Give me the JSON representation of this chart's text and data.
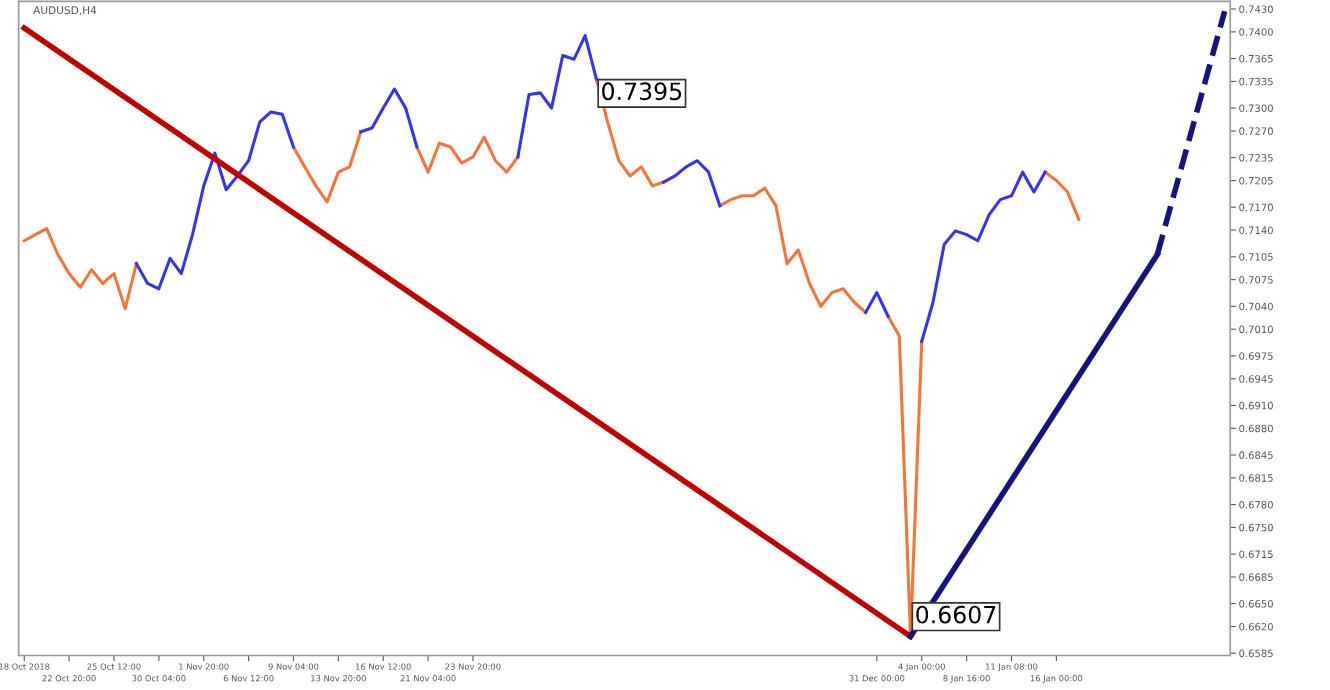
{
  "chart_data": {
    "type": "line",
    "title": "AUDUSD,H4",
    "categories": [
      "18 Oct 2018",
      null,
      null,
      null,
      "22 Oct 20:00",
      null,
      null,
      null,
      "25 Oct 12:00",
      null,
      null,
      null,
      "30 Oct 04:00",
      null,
      null,
      null,
      "1 Nov 20:00",
      null,
      null,
      null,
      "6 Nov 12:00",
      null,
      null,
      null,
      "9 Nov 04:00",
      null,
      null,
      null,
      "13 Nov 20:00",
      null,
      null,
      null,
      "16 Nov 12:00",
      null,
      null,
      null,
      "21 Nov 04:00",
      null,
      null,
      null,
      "23 Nov 20:00",
      null,
      null,
      null,
      null,
      null,
      null,
      null,
      null,
      null,
      null,
      null,
      null,
      null,
      null,
      null,
      null,
      null,
      null,
      null,
      null,
      null,
      null,
      null,
      null,
      null,
      null,
      null,
      null,
      null,
      null,
      null,
      null,
      null,
      null,
      null,
      "31 Dec 00:00",
      null,
      null,
      null,
      "4 Jan 00:00",
      null,
      null,
      null,
      "8 Jan 16:00",
      null,
      null,
      null,
      "11 Jan 08:00",
      null,
      null,
      null,
      "16 Jan 00:00",
      null,
      null,
      null,
      null,
      null,
      null,
      null,
      null,
      null,
      null,
      null,
      null,
      null,
      null,
      null
    ],
    "series": [
      {
        "color": "#f5743b",
        "values": [
          0.7126,
          0.7134,
          0.7142,
          0.7108,
          0.7083,
          0.7065,
          0.7088,
          0.707,
          0.7083,
          0.7037,
          0.7096,
          null,
          null,
          null,
          null,
          null,
          null,
          null,
          null,
          null,
          null,
          null,
          null,
          null,
          0.7249,
          0.7223,
          0.7198,
          0.7177,
          0.7216,
          0.7223,
          0.7269,
          null,
          null,
          null,
          null,
          0.7249,
          0.7216,
          0.7254,
          0.7249,
          0.7228,
          0.7236,
          0.7262,
          0.7231,
          0.7216,
          0.7236,
          null,
          null,
          null,
          null,
          null,
          null,
          0.7338,
          0.7282,
          0.7231,
          0.7211,
          0.7223,
          0.7198,
          0.7203,
          null,
          null,
          null,
          null,
          0.7172,
          0.718,
          0.7185,
          0.7185,
          0.7195,
          0.7172,
          0.7096,
          0.7114,
          0.707,
          0.704,
          0.7058,
          0.7063,
          0.7045,
          0.7032,
          null,
          0.7027,
          0.7001,
          0.6607,
          0.6994,
          null,
          null,
          null,
          null,
          null,
          null,
          null,
          null,
          null,
          null,
          0.7216,
          0.7205,
          0.719,
          0.7154,
          null,
          null,
          null,
          null,
          null,
          null,
          null,
          null,
          null,
          null,
          null,
          null,
          null
        ]
      },
      {
        "color": "#3535e8",
        "values": [
          null,
          null,
          null,
          null,
          null,
          null,
          null,
          null,
          null,
          null,
          0.7096,
          0.707,
          0.7063,
          0.7103,
          0.7083,
          0.7134,
          0.7198,
          0.7241,
          0.7193,
          0.7211,
          0.7231,
          0.7282,
          0.7295,
          0.7292,
          0.7249,
          null,
          null,
          null,
          null,
          null,
          0.7269,
          0.7274,
          0.73,
          0.7325,
          0.73,
          0.7249,
          null,
          null,
          null,
          null,
          null,
          null,
          null,
          null,
          0.7236,
          0.7318,
          0.732,
          0.73,
          0.7369,
          0.7364,
          0.7395,
          0.7338,
          null,
          null,
          null,
          null,
          null,
          0.7203,
          0.7211,
          0.7223,
          0.7231,
          0.7216,
          0.7172,
          null,
          null,
          null,
          null,
          null,
          null,
          null,
          null,
          null,
          null,
          null,
          null,
          0.7032,
          0.7058,
          0.7027,
          null,
          null,
          0.6994,
          0.7045,
          0.7121,
          0.7139,
          0.7134,
          0.7126,
          0.716,
          0.718,
          0.7185,
          0.7216,
          0.719,
          0.7216,
          null,
          null,
          null,
          null,
          null,
          null,
          null,
          null,
          null,
          null,
          null,
          null,
          null,
          null,
          null,
          null
        ]
      },
      {
        "color": "#c00000",
        "line_style": "solid",
        "values": [
          0.7405,
          null,
          null,
          null,
          null,
          null,
          null,
          null,
          null,
          null,
          null,
          null,
          null,
          null,
          null,
          null,
          null,
          null,
          null,
          null,
          null,
          null,
          null,
          null,
          null,
          null,
          null,
          null,
          null,
          null,
          null,
          null,
          null,
          null,
          null,
          null,
          null,
          null,
          null,
          null,
          null,
          null,
          null,
          null,
          null,
          null,
          null,
          null,
          null,
          null,
          null,
          null,
          null,
          null,
          null,
          null,
          null,
          null,
          null,
          null,
          null,
          null,
          null,
          null,
          null,
          null,
          null,
          null,
          null,
          null,
          null,
          null,
          null,
          null,
          null,
          null,
          null,
          null,
          null,
          0.6607,
          null,
          null,
          null,
          null,
          null,
          null,
          null,
          null,
          null,
          null,
          null,
          null,
          null,
          null,
          null,
          null,
          null,
          null,
          null,
          null,
          null,
          null,
          null,
          null,
          null,
          null,
          null,
          null
        ]
      },
      {
        "color": "#14147a",
        "line_style": "solid",
        "values": [
          null,
          null,
          null,
          null,
          null,
          null,
          null,
          null,
          null,
          null,
          null,
          null,
          null,
          null,
          null,
          null,
          null,
          null,
          null,
          null,
          null,
          null,
          null,
          null,
          null,
          null,
          null,
          null,
          null,
          null,
          null,
          null,
          null,
          null,
          null,
          null,
          null,
          null,
          null,
          null,
          null,
          null,
          null,
          null,
          null,
          null,
          null,
          null,
          null,
          null,
          null,
          null,
          null,
          null,
          null,
          null,
          null,
          null,
          null,
          null,
          null,
          null,
          null,
          null,
          null,
          null,
          null,
          null,
          null,
          null,
          null,
          null,
          null,
          null,
          null,
          null,
          null,
          null,
          null,
          0.6607,
          null,
          null,
          null,
          null,
          null,
          null,
          null,
          null,
          null,
          null,
          null,
          null,
          null,
          null,
          null,
          null,
          null,
          null,
          null,
          null,
          null,
          0.7108,
          null,
          null,
          null,
          null,
          null,
          null
        ]
      },
      {
        "color": "#14147a",
        "line_style": "dashed",
        "values": [
          null,
          null,
          null,
          null,
          null,
          null,
          null,
          null,
          null,
          null,
          null,
          null,
          null,
          null,
          null,
          null,
          null,
          null,
          null,
          null,
          null,
          null,
          null,
          null,
          null,
          null,
          null,
          null,
          null,
          null,
          null,
          null,
          null,
          null,
          null,
          null,
          null,
          null,
          null,
          null,
          null,
          null,
          null,
          null,
          null,
          null,
          null,
          null,
          null,
          null,
          null,
          null,
          null,
          null,
          null,
          null,
          null,
          null,
          null,
          null,
          null,
          null,
          null,
          null,
          null,
          null,
          null,
          null,
          null,
          null,
          null,
          null,
          null,
          null,
          null,
          null,
          null,
          null,
          null,
          null,
          null,
          null,
          null,
          null,
          null,
          null,
          null,
          null,
          null,
          null,
          null,
          null,
          null,
          null,
          null,
          null,
          null,
          null,
          null,
          null,
          null,
          0.7108,
          null,
          null,
          null,
          null,
          null,
          0.7427
        ]
      }
    ],
    "annotations": [
      "0.7395",
      "0.6607"
    ],
    "ylim": [
      0.6582,
      0.744
    ],
    "yticks": [
      {
        "value": 0.743,
        "label": "0.7430"
      },
      {
        "value": 0.74,
        "label": "0.7400"
      },
      {
        "value": 0.7365,
        "label": "0.7365"
      },
      {
        "value": 0.7335,
        "label": "0.7335"
      },
      {
        "value": 0.73,
        "label": "0.7300"
      },
      {
        "value": 0.727,
        "label": "0.7270"
      },
      {
        "value": 0.7235,
        "label": "0.7235"
      },
      {
        "value": 0.7205,
        "label": "0.7205"
      },
      {
        "value": 0.717,
        "label": "0.7170"
      },
      {
        "value": 0.714,
        "label": "0.7140"
      },
      {
        "value": 0.7105,
        "label": "0.7105"
      },
      {
        "value": 0.7075,
        "label": "0.7075"
      },
      {
        "value": 0.704,
        "label": "0.7040"
      },
      {
        "value": 0.701,
        "label": "0.7010"
      },
      {
        "value": 0.6975,
        "label": "0.6975"
      },
      {
        "value": 0.6945,
        "label": "0.6945"
      },
      {
        "value": 0.691,
        "label": "0.6910"
      },
      {
        "value": 0.688,
        "label": "0.6880"
      },
      {
        "value": 0.6845,
        "label": "0.6845"
      },
      {
        "value": 0.6815,
        "label": "0.6815"
      },
      {
        "value": 0.678,
        "label": "0.6780"
      },
      {
        "value": 0.675,
        "label": "0.6750"
      },
      {
        "value": 0.6715,
        "label": "0.6715"
      },
      {
        "value": 0.6685,
        "label": "0.6685"
      },
      {
        "value": 0.665,
        "label": "0.6650"
      },
      {
        "value": 0.662,
        "label": "0.6620"
      },
      {
        "value": 0.6585,
        "label": "0.6585"
      }
    ],
    "grid": false,
    "legend": false,
    "marker": "none"
  }
}
